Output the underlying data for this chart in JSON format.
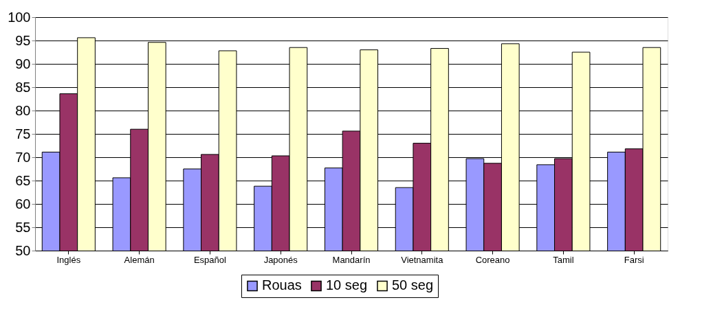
{
  "chart_data": {
    "type": "bar",
    "categories": [
      "Inglés",
      "Alemán",
      "Español",
      "Japonés",
      "Mandarín",
      "Vietnamita",
      "Coreano",
      "Tamil",
      "Farsi"
    ],
    "series": [
      {
        "name": "Rouas",
        "color": "#9999ff",
        "values": [
          71.1,
          65.6,
          67.5,
          63.8,
          67.7,
          63.5,
          69.7,
          68.4,
          71.1
        ]
      },
      {
        "name": "10 seg",
        "color": "#993366",
        "values": [
          83.6,
          76.0,
          70.6,
          70.3,
          75.6,
          73.0,
          68.7,
          69.7,
          71.8
        ]
      },
      {
        "name": "50 seg",
        "color": "#ffffcc",
        "values": [
          95.6,
          94.6,
          92.8,
          93.5,
          93.0,
          93.3,
          94.3,
          92.5,
          93.5
        ]
      }
    ],
    "ylim": [
      50,
      100
    ],
    "yticks": [
      50,
      55,
      60,
      65,
      70,
      75,
      80,
      85,
      90,
      95,
      100
    ],
    "grid": "y",
    "legend": "bottom"
  }
}
